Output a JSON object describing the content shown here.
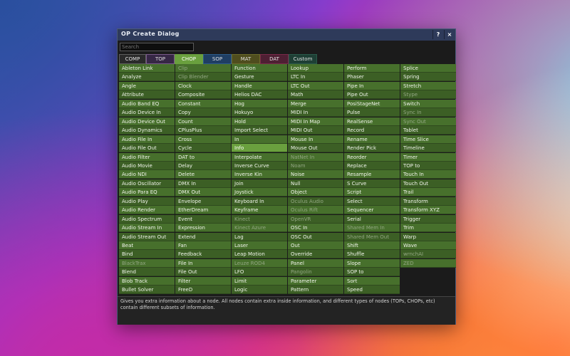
{
  "dialog": {
    "title": "OP Create Dialog",
    "help_label": "?",
    "close_label": "×",
    "search_placeholder": "Search",
    "info_text": "Gives you extra information about a node. All nodes contain extra inside information, and different types of nodes (TOPs, CHOPs, etc) contain different subsets of information."
  },
  "tabs": [
    {
      "label": "COMP",
      "color": "#5e5e5e",
      "bg": "#2a2a2a"
    },
    {
      "label": "TOP",
      "color": "#7a5a8a",
      "bg": "#362745"
    },
    {
      "label": "CHOP",
      "color": "#6aa03e",
      "bg": "#4a7f29",
      "active": true
    },
    {
      "label": "SOP",
      "color": "#2d5c8a",
      "bg": "#1f3e63"
    },
    {
      "label": "MAT",
      "color": "#6b6a2a",
      "bg": "#4f4d1e"
    },
    {
      "label": "DAT",
      "color": "#7a2a4a",
      "bg": "#4e1f33"
    },
    {
      "label": "Custom",
      "color": "#2a5a4a",
      "bg": "#1e3f35"
    }
  ],
  "columns": [
    [
      {
        "label": "Ableton Link"
      },
      {
        "label": "Analyze"
      },
      {
        "label": "Angle"
      },
      {
        "label": "Attribute"
      },
      {
        "label": "Audio Band EQ"
      },
      {
        "label": "Audio Device In"
      },
      {
        "label": "Audio Device Out"
      },
      {
        "label": "Audio Dynamics"
      },
      {
        "label": "Audio File In"
      },
      {
        "label": "Audio File Out"
      },
      {
        "label": "Audio Filter"
      },
      {
        "label": "Audio Movie"
      },
      {
        "label": "Audio NDI"
      },
      {
        "label": "Audio Oscillator"
      },
      {
        "label": "Audio Para EQ"
      },
      {
        "label": "Audio Play"
      },
      {
        "label": "Audio Render"
      },
      {
        "label": "Audio Spectrum"
      },
      {
        "label": "Audio Stream In"
      },
      {
        "label": "Audio Stream Out"
      },
      {
        "label": "Beat"
      },
      {
        "label": "Bind"
      },
      {
        "label": "BlackTrax",
        "dim": true
      },
      {
        "label": "Blend"
      },
      {
        "label": "Blob Track"
      },
      {
        "label": "Bullet Solver"
      }
    ],
    [
      {
        "label": "Clip",
        "dim": true
      },
      {
        "label": "Clip Blender",
        "dim": true
      },
      {
        "label": "Clock"
      },
      {
        "label": "Composite"
      },
      {
        "label": "Constant"
      },
      {
        "label": "Copy"
      },
      {
        "label": "Count"
      },
      {
        "label": "CPlusPlus"
      },
      {
        "label": "Cross"
      },
      {
        "label": "Cycle"
      },
      {
        "label": "DAT to"
      },
      {
        "label": "Delay"
      },
      {
        "label": "Delete"
      },
      {
        "label": "DMX In"
      },
      {
        "label": "DMX Out"
      },
      {
        "label": "Envelope"
      },
      {
        "label": "EtherDream"
      },
      {
        "label": "Event"
      },
      {
        "label": "Expression"
      },
      {
        "label": "Extend"
      },
      {
        "label": "Fan"
      },
      {
        "label": "Feedback"
      },
      {
        "label": "File In"
      },
      {
        "label": "File Out"
      },
      {
        "label": "Filter"
      },
      {
        "label": "FreeD"
      }
    ],
    [
      {
        "label": "Function"
      },
      {
        "label": "Gesture"
      },
      {
        "label": "Handle"
      },
      {
        "label": "Helios DAC"
      },
      {
        "label": "Hog"
      },
      {
        "label": "Hokuyo"
      },
      {
        "label": "Hold"
      },
      {
        "label": "Import Select"
      },
      {
        "label": "In"
      },
      {
        "label": "Info",
        "highlight": true
      },
      {
        "label": "Interpolate"
      },
      {
        "label": "Inverse Curve"
      },
      {
        "label": "Inverse Kin"
      },
      {
        "label": "Join"
      },
      {
        "label": "Joystick"
      },
      {
        "label": "Keyboard In"
      },
      {
        "label": "Keyframe"
      },
      {
        "label": "Kinect",
        "dim": true
      },
      {
        "label": "Kinect Azure",
        "dim": true
      },
      {
        "label": "Lag"
      },
      {
        "label": "Laser"
      },
      {
        "label": "Leap Motion"
      },
      {
        "label": "Leuze ROD4",
        "dim": true
      },
      {
        "label": "LFO"
      },
      {
        "label": "Limit"
      },
      {
        "label": "Logic"
      }
    ],
    [
      {
        "label": "Lookup"
      },
      {
        "label": "LTC In"
      },
      {
        "label": "LTC Out"
      },
      {
        "label": "Math"
      },
      {
        "label": "Merge"
      },
      {
        "label": "MIDI In"
      },
      {
        "label": "MIDI In Map"
      },
      {
        "label": "MIDI Out"
      },
      {
        "label": "Mouse In"
      },
      {
        "label": "Mouse Out"
      },
      {
        "label": "NatNet In",
        "dim": true
      },
      {
        "label": "Noam",
        "dim": true
      },
      {
        "label": "Noise"
      },
      {
        "label": "Null"
      },
      {
        "label": "Object"
      },
      {
        "label": "Oculus Audio",
        "dim": true
      },
      {
        "label": "Oculus Rift",
        "dim": true
      },
      {
        "label": "OpenVR",
        "dim": true
      },
      {
        "label": "OSC In"
      },
      {
        "label": "OSC Out"
      },
      {
        "label": "Out"
      },
      {
        "label": "Override"
      },
      {
        "label": "Panel"
      },
      {
        "label": "Pangolin",
        "dim": true
      },
      {
        "label": "Parameter"
      },
      {
        "label": "Pattern"
      }
    ],
    [
      {
        "label": "Perform"
      },
      {
        "label": "Phaser"
      },
      {
        "label": "Pipe In"
      },
      {
        "label": "Pipe Out"
      },
      {
        "label": "PosiStageNet"
      },
      {
        "label": "Pulse"
      },
      {
        "label": "RealSense"
      },
      {
        "label": "Record"
      },
      {
        "label": "Rename"
      },
      {
        "label": "Render Pick"
      },
      {
        "label": "Reorder"
      },
      {
        "label": "Replace"
      },
      {
        "label": "Resample"
      },
      {
        "label": "S Curve"
      },
      {
        "label": "Script"
      },
      {
        "label": "Select"
      },
      {
        "label": "Sequencer"
      },
      {
        "label": "Serial"
      },
      {
        "label": "Shared Mem In",
        "dim": true
      },
      {
        "label": "Shared Mem Out",
        "dim": true
      },
      {
        "label": "Shift"
      },
      {
        "label": "Shuffle"
      },
      {
        "label": "Slope"
      },
      {
        "label": "SOP to"
      },
      {
        "label": "Sort"
      },
      {
        "label": "Speed"
      }
    ],
    [
      {
        "label": "Splice"
      },
      {
        "label": "Spring"
      },
      {
        "label": "Stretch"
      },
      {
        "label": "Stype",
        "dim": true
      },
      {
        "label": "Switch"
      },
      {
        "label": "Sync In",
        "dim": true
      },
      {
        "label": "Sync Out",
        "dim": true
      },
      {
        "label": "Tablet"
      },
      {
        "label": "Time Slice"
      },
      {
        "label": "Timeline"
      },
      {
        "label": "Timer"
      },
      {
        "label": "TOP to"
      },
      {
        "label": "Touch In"
      },
      {
        "label": "Touch Out"
      },
      {
        "label": "Trail"
      },
      {
        "label": "Transform"
      },
      {
        "label": "Transform XYZ"
      },
      {
        "label": "Trigger"
      },
      {
        "label": "Trim"
      },
      {
        "label": "Warp"
      },
      {
        "label": "Wave"
      },
      {
        "label": "wrnchAI",
        "dim": true
      },
      {
        "label": "ZED",
        "dim": true
      }
    ]
  ]
}
